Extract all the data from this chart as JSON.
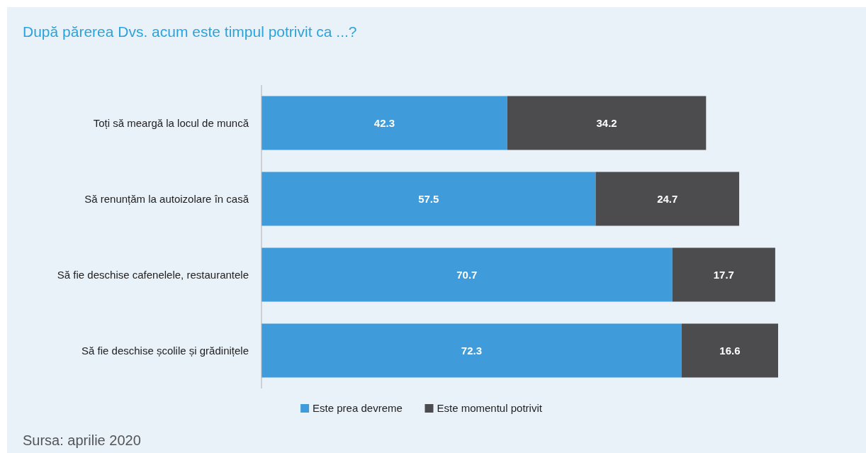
{
  "chart_data": {
    "type": "bar",
    "orientation": "horizontal",
    "stacked": true,
    "title": "După părerea Dvs. acum este timpul potrivit ca ...?",
    "categories": [
      "Toți să meargă la locul de muncă",
      "Să renunțăm la autoizolare în casă",
      "Să fie deschise cafenelele, restaurantele",
      "Să fie deschise școlile și grădinițele"
    ],
    "series": [
      {
        "name": "Este prea devreme",
        "color": "#3f9bd9",
        "values": [
          42.3,
          57.5,
          70.7,
          72.3
        ]
      },
      {
        "name": "Este momentul potrivit",
        "color": "#4c4c4f",
        "values": [
          34.2,
          24.7,
          17.7,
          16.6
        ]
      }
    ],
    "data_labels": true,
    "legend": "bottom",
    "annotations": [
      "Sursa: aprilie 2020"
    ]
  }
}
